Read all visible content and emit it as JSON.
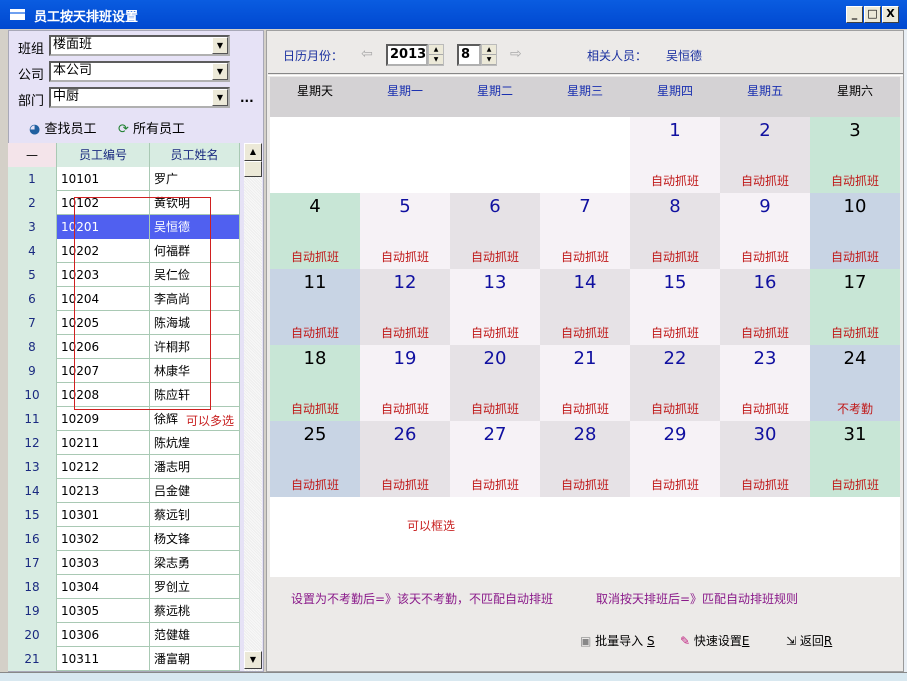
{
  "window": {
    "title": "员工按天排班设置",
    "min": "_",
    "max": "□",
    "close": "X"
  },
  "filters": {
    "group_label": "班组",
    "group_value": "楼面班",
    "company_label": "公司",
    "company_value": "本公司",
    "dept_label": "部门",
    "dept_value": "中厨",
    "more": "..."
  },
  "actions": {
    "find": "查找员工",
    "all": "所有员工"
  },
  "grid": {
    "headers": [
      "—",
      "员工编号",
      "员工姓名"
    ],
    "rows": [
      [
        "1",
        "10101",
        "罗广"
      ],
      [
        "2",
        "10102",
        "黄钦明"
      ],
      [
        "3",
        "10201",
        "吴恒德"
      ],
      [
        "4",
        "10202",
        "何福群"
      ],
      [
        "5",
        "10203",
        "吴仁俭"
      ],
      [
        "6",
        "10204",
        "李高尚"
      ],
      [
        "7",
        "10205",
        "陈海城"
      ],
      [
        "8",
        "10206",
        "许桐邦"
      ],
      [
        "9",
        "10207",
        "林康华"
      ],
      [
        "10",
        "10208",
        "陈应轩"
      ],
      [
        "11",
        "10209",
        "徐辉"
      ],
      [
        "12",
        "10211",
        "陈炕煌"
      ],
      [
        "13",
        "10212",
        "潘志明"
      ],
      [
        "14",
        "10213",
        "吕金健"
      ],
      [
        "15",
        "10301",
        "蔡远钊"
      ],
      [
        "16",
        "10302",
        "杨文锋"
      ],
      [
        "17",
        "10303",
        "梁志勇"
      ],
      [
        "18",
        "10304",
        "罗创立"
      ],
      [
        "19",
        "10305",
        "蔡远桃"
      ],
      [
        "20",
        "10306",
        "范健雄"
      ],
      [
        "21",
        "10311",
        "潘富朝"
      ]
    ],
    "selected_row": 3
  },
  "toolbar": {
    "month_label": "日历月份：",
    "year": "2013",
    "month": "8",
    "person_label": "相关人员：",
    "person": "吴恒德"
  },
  "calendar": {
    "weekdays": [
      "星期天",
      "星期一",
      "星期二",
      "星期三",
      "星期四",
      "星期五",
      "星期六"
    ],
    "first_weekday": 4,
    "days": [
      {
        "d": "1",
        "s": "自动抓班"
      },
      {
        "d": "2",
        "s": "自动抓班"
      },
      {
        "d": "3",
        "s": "自动抓班"
      },
      {
        "d": "4",
        "s": "自动抓班"
      },
      {
        "d": "5",
        "s": "自动抓班"
      },
      {
        "d": "6",
        "s": "自动抓班"
      },
      {
        "d": "7",
        "s": "自动抓班"
      },
      {
        "d": "8",
        "s": "自动抓班"
      },
      {
        "d": "9",
        "s": "自动抓班"
      },
      {
        "d": "10",
        "s": "自动抓班"
      },
      {
        "d": "11",
        "s": "自动抓班"
      },
      {
        "d": "12",
        "s": "自动抓班"
      },
      {
        "d": "13",
        "s": "自动抓班"
      },
      {
        "d": "14",
        "s": "自动抓班"
      },
      {
        "d": "15",
        "s": "自动抓班"
      },
      {
        "d": "16",
        "s": "自动抓班"
      },
      {
        "d": "17",
        "s": "自动抓班"
      },
      {
        "d": "18",
        "s": "自动抓班"
      },
      {
        "d": "19",
        "s": "自动抓班"
      },
      {
        "d": "20",
        "s": "自动抓班"
      },
      {
        "d": "21",
        "s": "自动抓班"
      },
      {
        "d": "22",
        "s": "自动抓班"
      },
      {
        "d": "23",
        "s": "自动抓班"
      },
      {
        "d": "24",
        "s": "不考勤"
      },
      {
        "d": "25",
        "s": "自动抓班"
      },
      {
        "d": "26",
        "s": "自动抓班"
      },
      {
        "d": "27",
        "s": "自动抓班"
      },
      {
        "d": "28",
        "s": "自动抓班"
      },
      {
        "d": "29",
        "s": "自动抓班"
      },
      {
        "d": "30",
        "s": "自动抓班"
      },
      {
        "d": "31",
        "s": "自动抓班"
      }
    ],
    "colors": {
      "cell_a": "#e6e2e6",
      "cell_b": "#f6f2f6",
      "weekend_blue": "#c8d4e4",
      "weekend_green": "#c8e6d6",
      "status": "#c01818"
    }
  },
  "hints": {
    "multi": "可以多选",
    "box": "可以框选"
  },
  "notes": {
    "left": "设置为不考勤后=》该天不考勤，不匹配自动排班",
    "right": "取消按天排班后=》匹配自动排班规则"
  },
  "buttons": {
    "import": "批量导入",
    "import_key": "S",
    "quick": "快速设置",
    "quick_key": "E",
    "back": "返回",
    "back_key": "R"
  }
}
